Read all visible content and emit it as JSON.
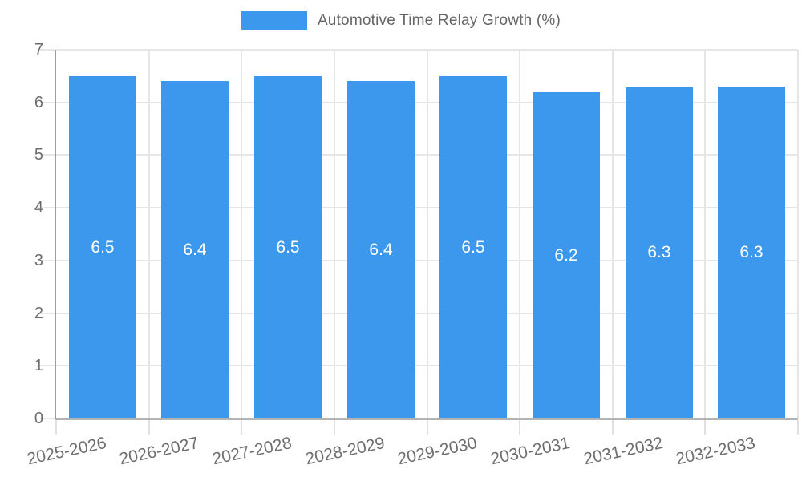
{
  "chart_data": {
    "type": "bar",
    "title": "Automotive Time Relay Growth (%)",
    "series": [
      {
        "name": "Automotive Time Relay Growth (%)",
        "values": [
          6.5,
          6.4,
          6.5,
          6.4,
          6.5,
          6.2,
          6.3,
          6.3
        ]
      }
    ],
    "categories": [
      "2025-2026",
      "2026-2027",
      "2027-2028",
      "2028-2029",
      "2029-2030",
      "2030-2031",
      "2031-2032",
      "2032-2033"
    ],
    "values": [
      6.5,
      6.4,
      6.5,
      6.4,
      6.5,
      6.2,
      6.3,
      6.3
    ],
    "value_labels": [
      "6.5",
      "6.4",
      "6.5",
      "6.4",
      "6.5",
      "6.2",
      "6.3",
      "6.3"
    ],
    "xlabel": "",
    "ylabel": "",
    "ylim": [
      0,
      7
    ],
    "yticks": [
      0,
      1,
      2,
      3,
      4,
      5,
      6,
      7
    ],
    "legend_position": "top",
    "grid": true,
    "style": {
      "bar_color": "#3b98ec",
      "value_label_color": "#ffffff",
      "axis_text_color": "#6e6e6e",
      "legend_text_color": "#666666",
      "grid_color": "#e6e6e6",
      "axis_line_color": "#9e9e9e",
      "baseline_color": "#b3b3b3"
    }
  }
}
